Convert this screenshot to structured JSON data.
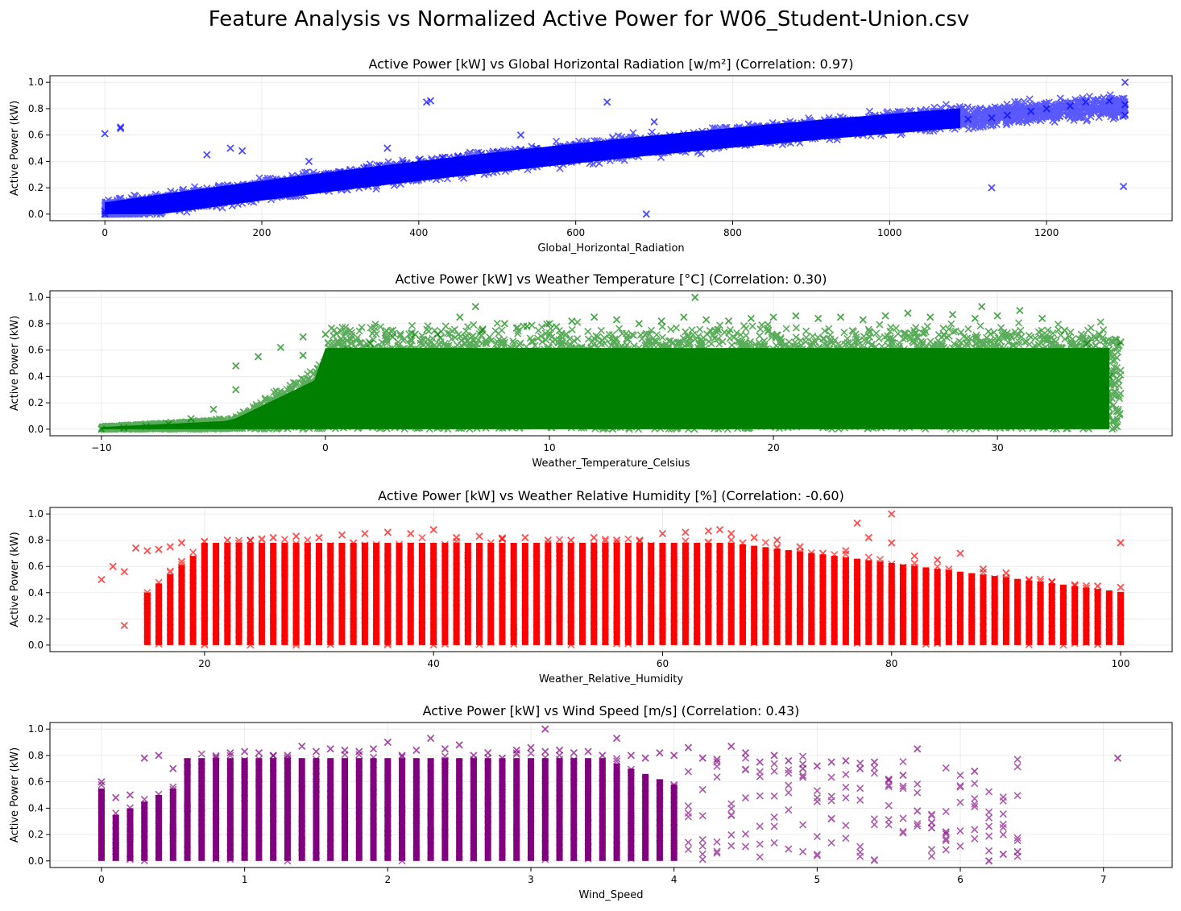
{
  "figure": {
    "title": "Feature Analysis vs Normalized Active Power for W06_Student-Union.csv"
  },
  "chart_data": [
    {
      "type": "scatter",
      "title": "Active Power [kW] vs Global Horizontal Radiation [w/m²] (Correlation: 0.97)",
      "xlabel": "Global_Horizontal_Radiation",
      "ylabel": "Active Power (kW)",
      "color": "#0000ff",
      "marker": "x",
      "xlim": [
        -70,
        1360
      ],
      "ylim": [
        -0.05,
        1.05
      ],
      "xticks": [
        0,
        200,
        400,
        600,
        800,
        1000,
        1200
      ],
      "yticks": [
        0.0,
        0.2,
        0.4,
        0.6,
        0.8,
        1.0
      ],
      "grid": true,
      "correlation": 0.97,
      "series": [
        {
          "x": [
            0,
            0,
            5,
            10,
            20,
            30,
            50,
            70,
            100,
            130,
            150,
            180,
            200,
            220,
            250,
            280,
            300,
            330,
            350,
            380,
            400,
            430,
            450,
            480,
            500,
            530,
            550,
            580,
            600,
            630,
            650,
            680,
            700,
            730,
            750,
            780,
            800,
            830,
            850,
            880,
            900,
            930,
            950,
            980,
            1000,
            1030,
            1050,
            1080,
            1100,
            1130,
            1150,
            1180,
            1200,
            1230,
            1250,
            1280,
            1300,
            1300,
            0,
            20,
            20,
            130,
            160,
            175,
            410,
            415,
            640,
            690,
            1130,
            1298,
            1300,
            700,
            530,
            360,
            260
          ],
          "y": [
            0.0,
            0.02,
            0.03,
            0.04,
            0.05,
            0.07,
            0.08,
            0.1,
            0.12,
            0.15,
            0.17,
            0.2,
            0.22,
            0.25,
            0.27,
            0.3,
            0.32,
            0.35,
            0.37,
            0.39,
            0.41,
            0.43,
            0.44,
            0.46,
            0.47,
            0.49,
            0.5,
            0.51,
            0.52,
            0.53,
            0.55,
            0.56,
            0.57,
            0.58,
            0.59,
            0.6,
            0.61,
            0.62,
            0.63,
            0.64,
            0.65,
            0.66,
            0.67,
            0.68,
            0.69,
            0.7,
            0.71,
            0.72,
            0.72,
            0.73,
            0.75,
            0.78,
            0.8,
            0.82,
            0.85,
            0.86,
            1.0,
            0.83,
            0.61,
            0.65,
            0.66,
            0.45,
            0.5,
            0.48,
            0.85,
            0.86,
            0.85,
            0.0,
            0.2,
            0.21,
            0.75,
            0.7,
            0.6,
            0.5,
            0.4
          ]
        }
      ]
    },
    {
      "type": "scatter",
      "title": "Active Power [kW] vs Weather Temperature [°C] (Correlation: 0.30)",
      "xlabel": "Weather_Temperature_Celsius",
      "ylabel": "Active Power (kW)",
      "color": "#008000",
      "marker": "x",
      "xlim": [
        -12.3,
        37.8
      ],
      "ylim": [
        -0.05,
        1.05
      ],
      "xticks": [
        -10,
        0,
        10,
        20,
        30
      ],
      "yticks": [
        0.0,
        0.2,
        0.4,
        0.6,
        0.8,
        1.0
      ],
      "grid": true,
      "correlation": 0.3,
      "series": [
        {
          "x": [
            -10,
            -9,
            -8,
            -7,
            -6,
            -5,
            -4,
            -3,
            -2,
            -1,
            0,
            1,
            2,
            3,
            4,
            5,
            6,
            7,
            8,
            9,
            10,
            11,
            12,
            13,
            14,
            15,
            16,
            17,
            18,
            19,
            20,
            21,
            22,
            23,
            24,
            25,
            26,
            27,
            28,
            29,
            30,
            31,
            32,
            33,
            34,
            35,
            6.7,
            16.5,
            29.3,
            34,
            35.5,
            -4,
            -1
          ],
          "y": [
            0.0,
            0.01,
            0.02,
            0.04,
            0.08,
            0.15,
            0.3,
            0.55,
            0.62,
            0.7,
            0.72,
            0.6,
            0.65,
            0.7,
            0.72,
            0.72,
            0.85,
            0.75,
            0.8,
            0.78,
            0.8,
            0.82,
            0.85,
            0.83,
            0.8,
            0.82,
            0.85,
            0.83,
            0.82,
            0.84,
            0.85,
            0.86,
            0.84,
            0.85,
            0.83,
            0.86,
            0.88,
            0.85,
            0.87,
            0.84,
            0.86,
            0.9,
            0.84,
            0.75,
            0.65,
            0.4,
            0.93,
            1.0,
            0.93,
            0.1,
            0.66,
            0.48,
            0.56
          ]
        }
      ]
    },
    {
      "type": "scatter",
      "title": "Active Power [kW] vs Weather Relative Humidity [%] (Correlation: -0.60)",
      "xlabel": "Weather_Relative_Humidity",
      "ylabel": "Active Power (kW)",
      "color": "#ff0000",
      "marker": "x",
      "xlim": [
        6.5,
        104.5
      ],
      "ylim": [
        -0.05,
        1.05
      ],
      "xticks": [
        20,
        40,
        60,
        80,
        100
      ],
      "yticks": [
        0.0,
        0.2,
        0.4,
        0.6,
        0.8,
        1.0
      ],
      "grid": true,
      "correlation": -0.6,
      "series": [
        {
          "x": [
            11,
            12,
            13,
            14,
            15,
            16,
            17,
            18,
            20,
            22,
            24,
            26,
            28,
            30,
            32,
            34,
            36,
            38,
            40,
            42,
            44,
            46,
            48,
            50,
            52,
            54,
            56,
            58,
            60,
            62,
            64,
            66,
            68,
            70,
            72,
            74,
            76,
            78,
            80,
            82,
            84,
            86,
            88,
            90,
            92,
            94,
            96,
            98,
            100,
            80,
            77,
            65,
            100,
            13
          ],
          "y": [
            0.5,
            0.6,
            0.56,
            0.74,
            0.72,
            0.73,
            0.75,
            0.78,
            0.79,
            0.8,
            0.8,
            0.82,
            0.83,
            0.82,
            0.84,
            0.85,
            0.86,
            0.85,
            0.88,
            0.82,
            0.83,
            0.81,
            0.82,
            0.8,
            0.8,
            0.82,
            0.8,
            0.8,
            0.85,
            0.86,
            0.87,
            0.85,
            0.82,
            0.8,
            0.75,
            0.7,
            0.72,
            0.82,
            0.78,
            0.68,
            0.65,
            0.7,
            0.58,
            0.55,
            0.5,
            0.48,
            0.46,
            0.45,
            0.44,
            1.0,
            0.93,
            0.88,
            0.78,
            0.15
          ]
        }
      ]
    },
    {
      "type": "scatter",
      "title": "Active Power [kW] vs Wind Speed [m/s] (Correlation: 0.43)",
      "xlabel": "Wind_Speed",
      "ylabel": "Active Power (kW)",
      "color": "#800080",
      "marker": "x",
      "xlim": [
        -0.36,
        7.48
      ],
      "ylim": [
        -0.05,
        1.05
      ],
      "xticks": [
        0,
        1,
        2,
        3,
        4,
        5,
        6,
        7
      ],
      "yticks": [
        0.0,
        0.2,
        0.4,
        0.6,
        0.8,
        1.0
      ],
      "grid": true,
      "correlation": 0.43,
      "series": [
        {
          "x": [
            0,
            0.1,
            0.2,
            0.3,
            0.4,
            0.5,
            0.6,
            0.7,
            0.8,
            0.9,
            1.0,
            1.1,
            1.2,
            1.3,
            1.4,
            1.5,
            1.6,
            1.7,
            1.8,
            1.9,
            2.0,
            2.1,
            2.2,
            2.3,
            2.4,
            2.5,
            2.6,
            2.7,
            2.8,
            2.9,
            3.0,
            3.1,
            3.2,
            3.3,
            3.4,
            3.5,
            3.6,
            3.7,
            3.8,
            3.9,
            4.0,
            4.1,
            4.2,
            4.3,
            4.4,
            4.5,
            4.6,
            4.7,
            4.8,
            4.9,
            5.0,
            5.1,
            5.2,
            5.3,
            5.4,
            5.5,
            5.6,
            5.7,
            5.8,
            5.9,
            6.1,
            6.2,
            6.3,
            6.4,
            7.1,
            3.1
          ],
          "y": [
            0.6,
            0.48,
            0.5,
            0.78,
            0.8,
            0.7,
            0.75,
            0.72,
            0.78,
            0.82,
            0.83,
            0.82,
            0.8,
            0.8,
            0.87,
            0.83,
            0.85,
            0.84,
            0.83,
            0.85,
            0.9,
            0.8,
            0.84,
            0.93,
            0.85,
            0.88,
            0.8,
            0.82,
            0.78,
            0.84,
            0.86,
            0.83,
            0.84,
            0.82,
            0.83,
            0.8,
            0.93,
            0.8,
            0.78,
            0.82,
            0.8,
            0.86,
            0.78,
            0.77,
            0.87,
            0.82,
            0.75,
            0.8,
            0.76,
            0.7,
            0.72,
            0.75,
            0.76,
            0.7,
            0.75,
            0.62,
            0.65,
            0.85,
            0.25,
            0.22,
            0.68,
            0.0,
            0.05,
            0.07,
            0.78,
            1.0
          ]
        }
      ]
    }
  ]
}
